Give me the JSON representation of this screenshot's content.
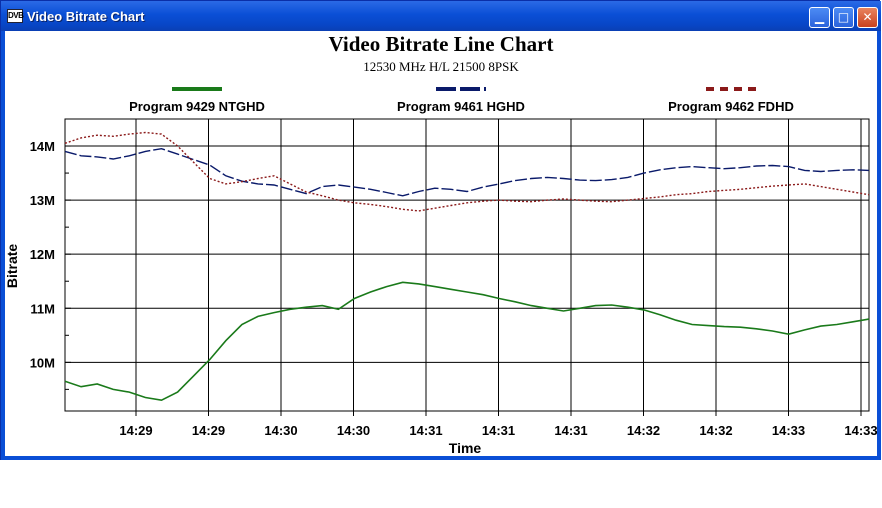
{
  "window": {
    "title": "Video Bitrate Chart",
    "icon_label": "DVB",
    "buttons": {
      "minimize": "minimize-icon",
      "maximize": "maximize-icon",
      "close": "close-icon"
    }
  },
  "colors": {
    "series1": "#1a7a1a",
    "series2": "#0a1a6a",
    "series3": "#8b1a1a",
    "titlebar": "#0a4fd6",
    "grid": "#000000"
  },
  "chart_data": {
    "type": "line",
    "title": "Video Bitrate Line Chart",
    "subtitle": "12530 MHz H/L 21500 8PSK",
    "xlabel": "Time",
    "ylabel": "Bitrate",
    "x_tick_labels": [
      "14:29",
      "14:29",
      "14:30",
      "14:30",
      "14:31",
      "14:31",
      "14:31",
      "14:32",
      "14:32",
      "14:33",
      "14:33"
    ],
    "y_tick_labels": [
      "10M",
      "11M",
      "12M",
      "13M",
      "14M"
    ],
    "y_tick_values": [
      10,
      11,
      12,
      13,
      14
    ],
    "ylim": [
      9.1,
      14.5
    ],
    "grid": true,
    "legend_position": "top",
    "x": [
      0,
      2,
      4,
      6,
      8,
      10,
      12,
      14,
      16,
      18,
      20,
      22,
      24,
      26,
      28,
      30,
      32,
      34,
      36,
      38,
      40,
      42,
      44,
      46,
      48,
      50,
      52,
      54,
      56,
      58,
      60,
      62,
      64,
      66,
      68,
      70,
      72,
      74,
      76,
      78,
      80,
      82,
      84,
      86,
      88,
      90,
      92,
      94,
      96,
      98,
      100
    ],
    "series": [
      {
        "name": "Program 9429 NTGHD",
        "style": "solid",
        "values": [
          9.65,
          9.55,
          9.6,
          9.5,
          9.45,
          9.35,
          9.3,
          9.45,
          9.75,
          10.05,
          10.4,
          10.7,
          10.85,
          10.92,
          10.98,
          11.02,
          11.05,
          10.98,
          11.18,
          11.3,
          11.4,
          11.48,
          11.45,
          11.4,
          11.35,
          11.3,
          11.25,
          11.18,
          11.12,
          11.05,
          11.0,
          10.95,
          11.0,
          11.05,
          11.06,
          11.02,
          10.97,
          10.88,
          10.78,
          10.7,
          10.68,
          10.66,
          10.65,
          10.62,
          10.58,
          10.52,
          10.6,
          10.67,
          10.7,
          10.75,
          10.8
        ]
      },
      {
        "name": "Program 9461 HGHD",
        "style": "dashed",
        "values": [
          13.9,
          13.82,
          13.8,
          13.76,
          13.82,
          13.9,
          13.95,
          13.85,
          13.75,
          13.65,
          13.45,
          13.35,
          13.3,
          13.28,
          13.2,
          13.12,
          13.25,
          13.28,
          13.24,
          13.2,
          13.14,
          13.08,
          13.16,
          13.22,
          13.2,
          13.16,
          13.24,
          13.3,
          13.36,
          13.4,
          13.42,
          13.4,
          13.37,
          13.36,
          13.38,
          13.42,
          13.5,
          13.56,
          13.6,
          13.62,
          13.6,
          13.58,
          13.6,
          13.63,
          13.64,
          13.62,
          13.55,
          13.53,
          13.55,
          13.56,
          13.55
        ]
      },
      {
        "name": "Program 9462 FDHD",
        "style": "dotted",
        "values": [
          14.05,
          14.15,
          14.2,
          14.18,
          14.22,
          14.25,
          14.22,
          14.0,
          13.7,
          13.4,
          13.3,
          13.34,
          13.4,
          13.45,
          13.3,
          13.15,
          13.08,
          13.0,
          12.95,
          12.92,
          12.88,
          12.83,
          12.8,
          12.85,
          12.9,
          12.95,
          12.98,
          13.0,
          12.98,
          12.97,
          13.0,
          13.02,
          13.0,
          12.98,
          12.97,
          13.0,
          13.03,
          13.06,
          13.1,
          13.12,
          13.16,
          13.18,
          13.2,
          13.23,
          13.26,
          13.28,
          13.3,
          13.25,
          13.2,
          13.15,
          13.1
        ]
      }
    ]
  }
}
